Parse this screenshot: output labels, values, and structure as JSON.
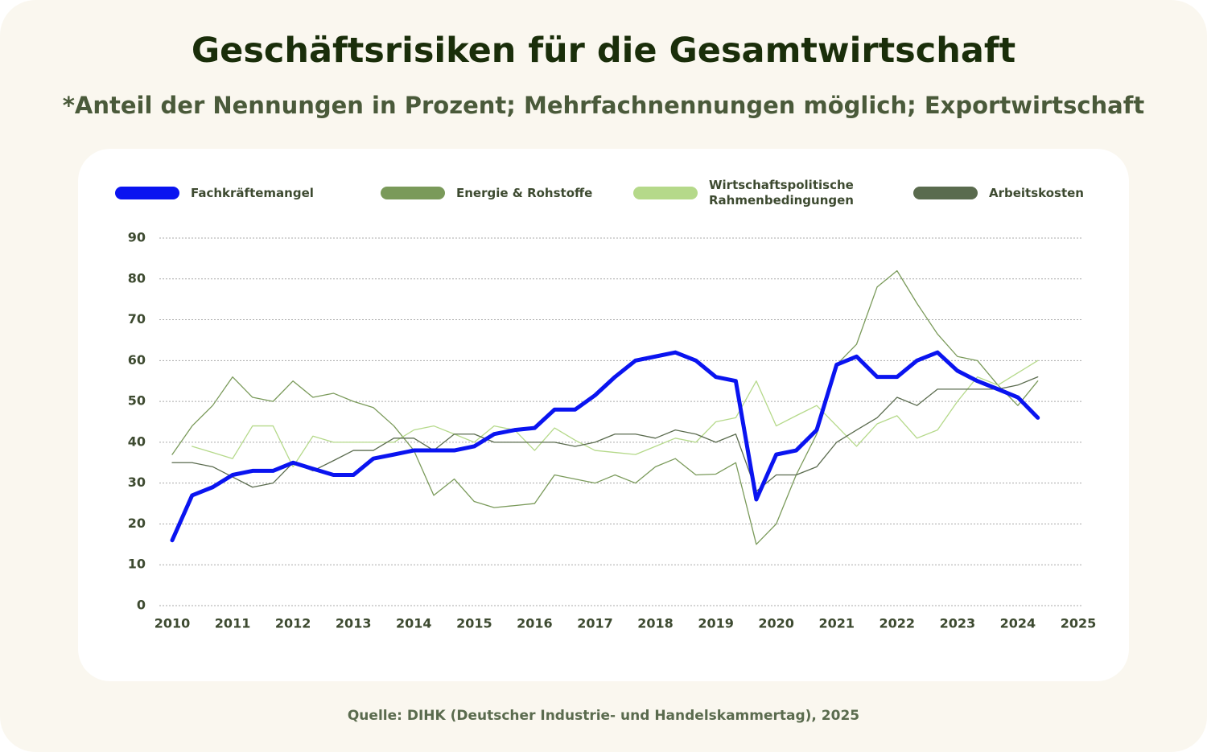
{
  "chart_data": {
    "type": "line",
    "title": "Geschäftsrisiken für die Gesamtwirtschaft",
    "subtitle": "*Anteil der Nennungen in Prozent; Mehrfachnennungen möglich; Exportwirtschaft",
    "source": "Quelle: DIHK (Deutscher Industrie- und Handelskammertag), 2025",
    "x": [
      2010,
      2010.33,
      2010.67,
      2011,
      2011.33,
      2011.67,
      2012,
      2012.33,
      2012.67,
      2013,
      2013.33,
      2013.67,
      2014,
      2014.33,
      2014.67,
      2015,
      2015.33,
      2015.67,
      2016,
      2016.33,
      2016.67,
      2017,
      2017.33,
      2017.67,
      2018,
      2018.33,
      2018.67,
      2019,
      2019.33,
      2019.67,
      2020,
      2020.33,
      2020.67,
      2021,
      2021.33,
      2021.67,
      2022,
      2022.33,
      2022.67,
      2023,
      2023.33,
      2023.67,
      2024,
      2024.33
    ],
    "series": [
      {
        "name": "Fachkräftemangel",
        "color": "#0a14f0",
        "width": 5,
        "values": [
          16,
          27,
          29,
          32,
          33,
          33,
          35,
          33.5,
          32,
          32,
          36,
          37,
          38,
          38,
          38,
          39,
          42,
          43,
          43.5,
          48,
          48,
          51.5,
          56,
          60,
          61,
          62,
          60,
          56,
          55,
          26,
          37,
          38,
          43,
          59,
          61,
          56,
          56,
          60,
          62,
          57.5,
          55,
          53,
          51,
          46
        ]
      },
      {
        "name": "Energie & Rohstoffe",
        "color": "#7a9a5a",
        "width": 1.3,
        "values": [
          37,
          44,
          49,
          56,
          51,
          50,
          55,
          51,
          52,
          50,
          48.5,
          44,
          38,
          27,
          31,
          25.5,
          24,
          24.5,
          25,
          32,
          31,
          30,
          32,
          30,
          34,
          36,
          32,
          32.2,
          35,
          15,
          20,
          32,
          42,
          59,
          64,
          78,
          82,
          74,
          66.5,
          61,
          60,
          54,
          49,
          55
        ]
      },
      {
        "name": "Wirtschaftspolitische Rahmenbedingungen",
        "color": "#b5d98a",
        "width": 1.3,
        "values": [
          null,
          39,
          37.5,
          36,
          44,
          44,
          34,
          41.5,
          40,
          40,
          40,
          40,
          43,
          44,
          42,
          40,
          44,
          43,
          38,
          43.5,
          40.5,
          38,
          37.5,
          37,
          39,
          41,
          40,
          45,
          46,
          55,
          44,
          46.5,
          49,
          44,
          39,
          44.5,
          46.5,
          41,
          43,
          50,
          56,
          54,
          57,
          60
        ]
      },
      {
        "name": "Arbeitskosten",
        "color": "#5a6b4e",
        "width": 1.3,
        "values": [
          35,
          35,
          34,
          31.5,
          29,
          30,
          35,
          33,
          35.5,
          38,
          38,
          41,
          41,
          38,
          42,
          42,
          40,
          40,
          40,
          40,
          39,
          40,
          42,
          42,
          41,
          43,
          42,
          40,
          42,
          28,
          32,
          32,
          34,
          40,
          43,
          46,
          51,
          49,
          53,
          53,
          53,
          53,
          54,
          56
        ]
      }
    ],
    "xlim": [
      2010,
      2025
    ],
    "xticks": [
      2010,
      2011,
      2012,
      2013,
      2014,
      2015,
      2016,
      2017,
      2018,
      2019,
      2020,
      2021,
      2022,
      2023,
      2024,
      2025
    ],
    "ylim": [
      0,
      90
    ],
    "yticks": [
      0,
      10,
      20,
      30,
      40,
      50,
      60,
      70,
      80,
      90
    ],
    "grid": true,
    "legend": "top"
  }
}
